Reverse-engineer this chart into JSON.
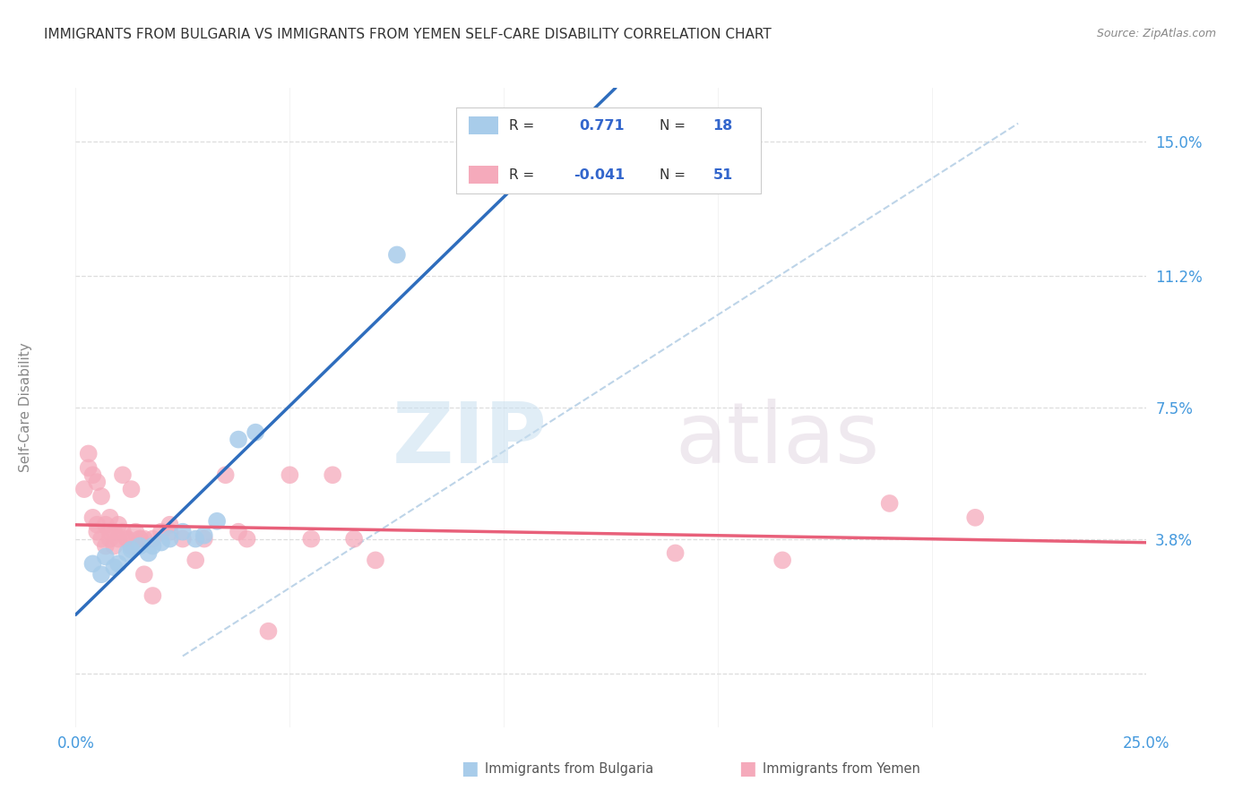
{
  "title": "IMMIGRANTS FROM BULGARIA VS IMMIGRANTS FROM YEMEN SELF-CARE DISABILITY CORRELATION CHART",
  "source": "Source: ZipAtlas.com",
  "ylabel": "Self-Care Disability",
  "xlim": [
    0.0,
    0.25
  ],
  "ylim": [
    -0.015,
    0.165
  ],
  "yticks": [
    0.0,
    0.038,
    0.075,
    0.112,
    0.15
  ],
  "ytick_labels": [
    "",
    "3.8%",
    "7.5%",
    "11.2%",
    "15.0%"
  ],
  "xticks": [
    0.0,
    0.05,
    0.1,
    0.15,
    0.2,
    0.25
  ],
  "xtick_labels": [
    "0.0%",
    "",
    "",
    "",
    "",
    "25.0%"
  ],
  "bulgaria_color": "#A8CCEA",
  "yemen_color": "#F5AABB",
  "bulgaria_line_color": "#2E6DBD",
  "yemen_line_color": "#E8607A",
  "diag_line_color": "#BDD4E8",
  "background_color": "#FFFFFF",
  "grid_color": "#DDDDDD",
  "R_bulgaria": 0.771,
  "N_bulgaria": 18,
  "R_yemen": -0.041,
  "N_yemen": 51,
  "watermark_zip": "ZIP",
  "watermark_atlas": "atlas",
  "title_color": "#333333",
  "axis_label_color": "#4499DD",
  "R_value_color": "#3366CC",
  "legend_label_color": "#333333",
  "bulgaria_points": [
    [
      0.004,
      0.031
    ],
    [
      0.006,
      0.028
    ],
    [
      0.007,
      0.033
    ],
    [
      0.009,
      0.03
    ],
    [
      0.01,
      0.031
    ],
    [
      0.012,
      0.034
    ],
    [
      0.013,
      0.035
    ],
    [
      0.015,
      0.036
    ],
    [
      0.017,
      0.034
    ],
    [
      0.018,
      0.036
    ],
    [
      0.02,
      0.037
    ],
    [
      0.022,
      0.038
    ],
    [
      0.025,
      0.04
    ],
    [
      0.028,
      0.038
    ],
    [
      0.03,
      0.039
    ],
    [
      0.033,
      0.043
    ],
    [
      0.038,
      0.066
    ],
    [
      0.042,
      0.068
    ]
  ],
  "yemen_points": [
    [
      0.002,
      0.052
    ],
    [
      0.003,
      0.062
    ],
    [
      0.003,
      0.058
    ],
    [
      0.004,
      0.056
    ],
    [
      0.004,
      0.044
    ],
    [
      0.005,
      0.054
    ],
    [
      0.005,
      0.042
    ],
    [
      0.005,
      0.04
    ],
    [
      0.006,
      0.05
    ],
    [
      0.006,
      0.038
    ],
    [
      0.007,
      0.042
    ],
    [
      0.007,
      0.036
    ],
    [
      0.008,
      0.04
    ],
    [
      0.008,
      0.044
    ],
    [
      0.008,
      0.038
    ],
    [
      0.009,
      0.04
    ],
    [
      0.009,
      0.036
    ],
    [
      0.01,
      0.042
    ],
    [
      0.01,
      0.038
    ],
    [
      0.011,
      0.056
    ],
    [
      0.011,
      0.04
    ],
    [
      0.012,
      0.038
    ],
    [
      0.012,
      0.038
    ],
    [
      0.013,
      0.052
    ],
    [
      0.013,
      0.036
    ],
    [
      0.014,
      0.04
    ],
    [
      0.015,
      0.038
    ],
    [
      0.015,
      0.038
    ],
    [
      0.016,
      0.038
    ],
    [
      0.016,
      0.028
    ],
    [
      0.018,
      0.022
    ],
    [
      0.018,
      0.038
    ],
    [
      0.02,
      0.04
    ],
    [
      0.022,
      0.04
    ],
    [
      0.022,
      0.042
    ],
    [
      0.025,
      0.038
    ],
    [
      0.028,
      0.032
    ],
    [
      0.03,
      0.038
    ],
    [
      0.035,
      0.056
    ],
    [
      0.038,
      0.04
    ],
    [
      0.04,
      0.038
    ],
    [
      0.045,
      0.012
    ],
    [
      0.05,
      0.056
    ],
    [
      0.055,
      0.038
    ],
    [
      0.06,
      0.056
    ],
    [
      0.065,
      0.038
    ],
    [
      0.07,
      0.032
    ],
    [
      0.14,
      0.034
    ],
    [
      0.165,
      0.032
    ],
    [
      0.19,
      0.048
    ],
    [
      0.21,
      0.044
    ]
  ],
  "special_bulgaria_point": [
    0.075,
    0.118
  ],
  "diag_line": [
    [
      0.025,
      0.005
    ],
    [
      0.22,
      0.155
    ]
  ]
}
